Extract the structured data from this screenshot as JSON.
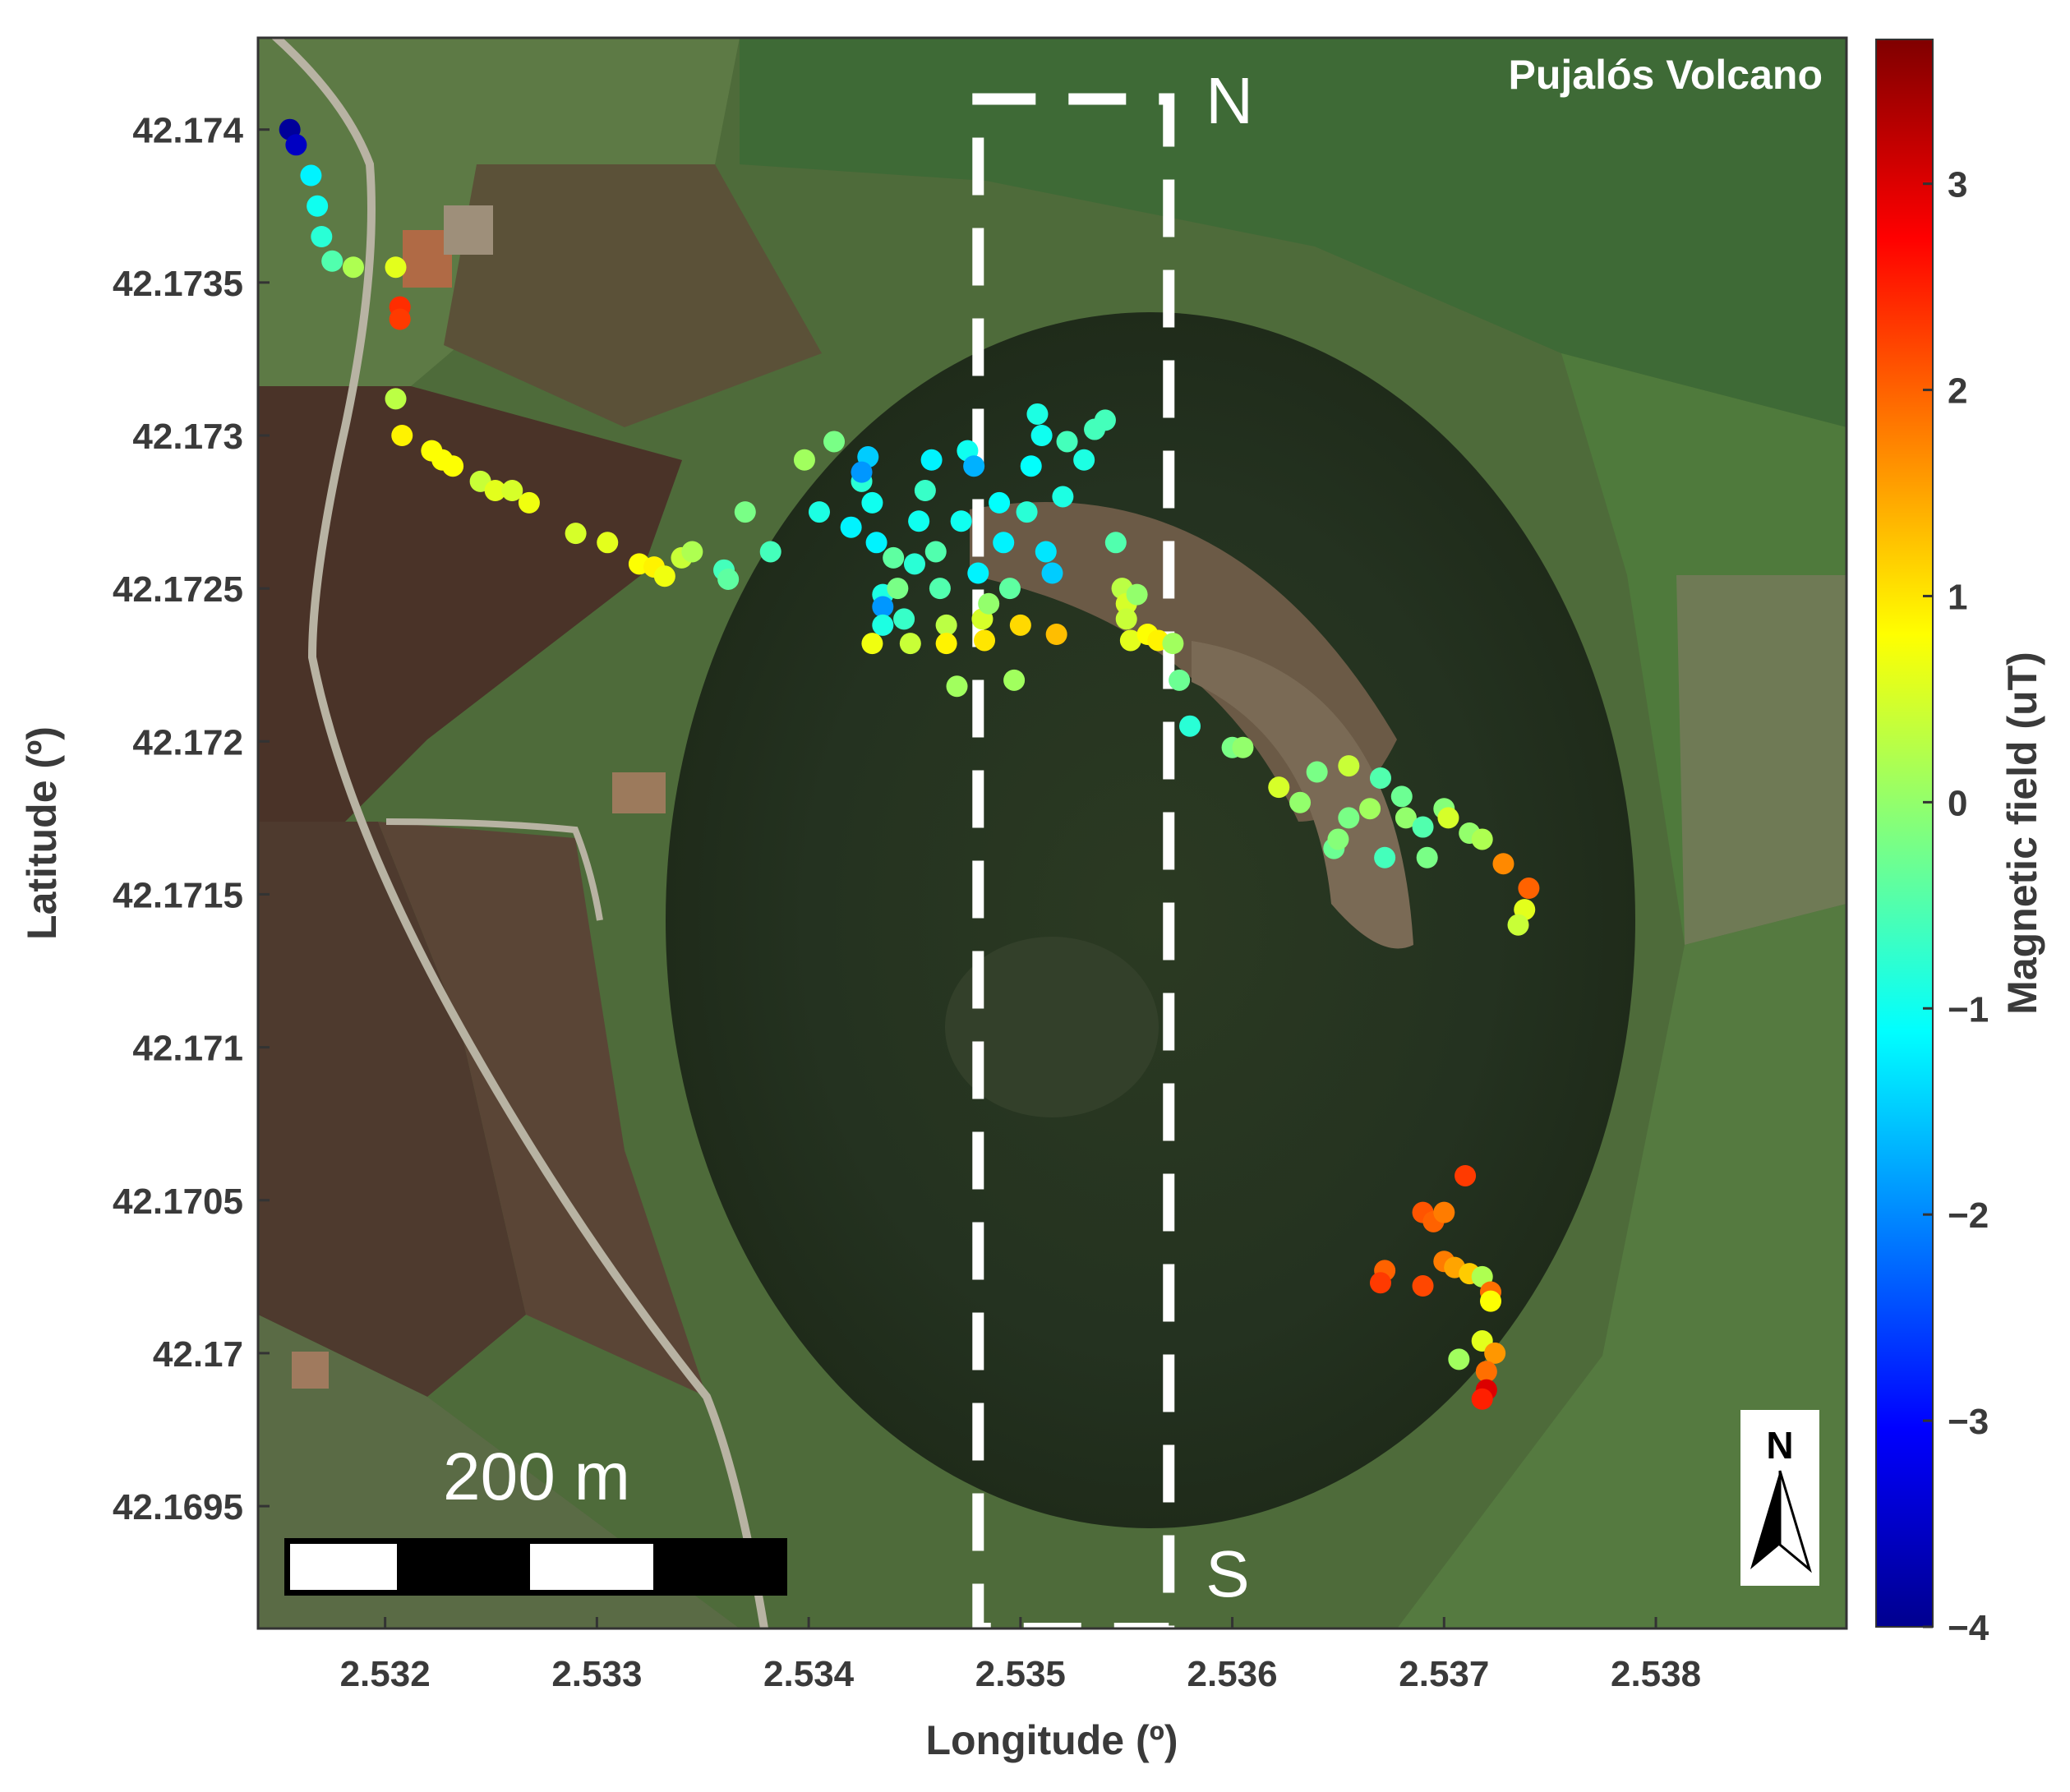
{
  "map": {
    "title": "Pujalós Volcano",
    "profile_start_label": "N",
    "profile_end_label": "S",
    "scale_bar_label": "200 m",
    "north_arrow_label": "N",
    "xlabel": "Longitude (º)",
    "ylabel": "Latitude (º)",
    "xlim": [
      2.5314,
      2.5389
    ],
    "ylim": [
      42.1691,
      42.1743
    ],
    "x_ticks": [
      "2.532",
      "2.533",
      "2.534",
      "2.535",
      "2.536",
      "2.537",
      "2.538"
    ],
    "y_ticks": [
      "42.174",
      "42.1735",
      "42.173",
      "42.1725",
      "42.172",
      "42.1715",
      "42.171",
      "42.1705",
      "42.17",
      "42.1695"
    ],
    "profile_box": {
      "lon": [
        2.5348,
        2.5357
      ],
      "lat": [
        42.1691,
        42.1741
      ]
    },
    "colors": {
      "profile_box": "#ffffff",
      "background": "#ffffff",
      "axis_text": "#3a3a3a"
    }
  },
  "colorbar": {
    "label": "Magnetic field (uT)",
    "range": [
      -4,
      3.7
    ],
    "ticks": [
      "3",
      "2",
      "1",
      "0",
      "−1",
      "−2",
      "−3",
      "−4"
    ],
    "colormap": "jet"
  },
  "chart_data": {
    "type": "scatter",
    "xlabel": "Longitude (º)",
    "ylabel": "Latitude (º)",
    "points": [
      [
        2.53155,
        42.174,
        -3.8
      ],
      [
        2.53158,
        42.17395,
        -3.5
      ],
      [
        2.53165,
        42.17385,
        -1.2
      ],
      [
        2.53168,
        42.17375,
        -1.0
      ],
      [
        2.5317,
        42.17365,
        -0.8
      ],
      [
        2.53175,
        42.17357,
        -0.5
      ],
      [
        2.53185,
        42.17355,
        0.2
      ],
      [
        2.53205,
        42.17355,
        0.6
      ],
      [
        2.53207,
        42.17342,
        2.4
      ],
      [
        2.53207,
        42.17338,
        2.3
      ],
      [
        2.53205,
        42.17312,
        0.3
      ],
      [
        2.53208,
        42.173,
        0.9
      ],
      [
        2.53222,
        42.17295,
        0.8
      ],
      [
        2.53227,
        42.17292,
        0.8
      ],
      [
        2.53232,
        42.1729,
        0.8
      ],
      [
        2.53245,
        42.17285,
        0.4
      ],
      [
        2.53252,
        42.17282,
        0.6
      ],
      [
        2.5326,
        42.17282,
        0.5
      ],
      [
        2.53268,
        42.17278,
        0.7
      ],
      [
        2.5329,
        42.17268,
        0.5
      ],
      [
        2.53305,
        42.17265,
        0.6
      ],
      [
        2.5332,
        42.17258,
        0.8
      ],
      [
        2.53327,
        42.17257,
        0.9
      ],
      [
        2.53332,
        42.17254,
        0.7
      ],
      [
        2.5334,
        42.1726,
        0.4
      ],
      [
        2.53345,
        42.17262,
        0.2
      ],
      [
        2.5336,
        42.17256,
        -0.6
      ],
      [
        2.53362,
        42.17253,
        -0.4
      ],
      [
        2.5337,
        42.17275,
        -0.2
      ],
      [
        2.53382,
        42.17262,
        -0.6
      ],
      [
        2.53398,
        42.17292,
        0.1
      ],
      [
        2.53405,
        42.17275,
        -0.9
      ],
      [
        2.53412,
        42.17298,
        -0.2
      ],
      [
        2.5342,
        42.1727,
        -1.2
      ],
      [
        2.53425,
        42.17285,
        -0.8
      ],
      [
        2.53428,
        42.17293,
        -1.5
      ],
      [
        2.53425,
        42.17288,
        -1.9
      ],
      [
        2.5343,
        42.17278,
        -1.0
      ],
      [
        2.53432,
        42.17265,
        -1.2
      ],
      [
        2.53435,
        42.17248,
        -0.9
      ],
      [
        2.53435,
        42.17244,
        -1.9
      ],
      [
        2.53435,
        42.17238,
        -0.9
      ],
      [
        2.5343,
        42.17232,
        0.7
      ],
      [
        2.5344,
        42.1726,
        -0.4
      ],
      [
        2.53442,
        42.1725,
        -0.2
      ],
      [
        2.53445,
        42.1724,
        -0.7
      ],
      [
        2.53448,
        42.17232,
        0.4
      ],
      [
        2.5345,
        42.17258,
        -0.8
      ],
      [
        2.53452,
        42.17272,
        -1.0
      ],
      [
        2.53455,
        42.17282,
        -0.7
      ],
      [
        2.53458,
        42.17292,
        -1.2
      ],
      [
        2.5346,
        42.17262,
        -0.5
      ],
      [
        2.53462,
        42.1725,
        -0.5
      ],
      [
        2.53465,
        42.17238,
        0.3
      ],
      [
        2.53465,
        42.17232,
        0.9
      ],
      [
        2.5347,
        42.17218,
        0.1
      ],
      [
        2.53472,
        42.17272,
        -1.0
      ],
      [
        2.53475,
        42.17295,
        -1.0
      ],
      [
        2.53478,
        42.1729,
        -1.7
      ],
      [
        2.5348,
        42.17255,
        -1.2
      ],
      [
        2.53482,
        42.1724,
        0.5
      ],
      [
        2.53483,
        42.17233,
        1.0
      ],
      [
        2.53485,
        42.17245,
        0.0
      ],
      [
        2.5349,
        42.17278,
        -1.1
      ],
      [
        2.53492,
        42.17265,
        -1.2
      ],
      [
        2.53495,
        42.1725,
        -0.4
      ],
      [
        2.53497,
        42.1722,
        0.1
      ],
      [
        2.535,
        42.17238,
        1.1
      ],
      [
        2.53503,
        42.17275,
        -0.8
      ],
      [
        2.53505,
        42.1729,
        -1.1
      ],
      [
        2.53508,
        42.17307,
        -0.9
      ],
      [
        2.5351,
        42.173,
        -1.0
      ],
      [
        2.53512,
        42.17262,
        -1.3
      ],
      [
        2.53515,
        42.17255,
        -1.5
      ],
      [
        2.53517,
        42.17235,
        1.3
      ],
      [
        2.5352,
        42.1728,
        -0.9
      ],
      [
        2.53522,
        42.17298,
        -0.6
      ],
      [
        2.5353,
        42.17292,
        -0.9
      ],
      [
        2.53535,
        42.17302,
        -0.6
      ],
      [
        2.5354,
        42.17305,
        -0.6
      ],
      [
        2.53545,
        42.17265,
        -0.5
      ],
      [
        2.53548,
        42.1725,
        0.3
      ],
      [
        2.5355,
        42.17245,
        0.5
      ],
      [
        2.5355,
        42.1724,
        0.4
      ],
      [
        2.53552,
        42.17233,
        0.6
      ],
      [
        2.53555,
        42.17248,
        0.0
      ],
      [
        2.5356,
        42.17235,
        0.8
      ],
      [
        2.53565,
        42.17233,
        0.9
      ],
      [
        2.53572,
        42.17232,
        0.1
      ],
      [
        2.53575,
        42.1722,
        -0.3
      ],
      [
        2.5358,
        42.17205,
        -0.8
      ],
      [
        2.536,
        42.17198,
        -0.2
      ],
      [
        2.53605,
        42.17198,
        0.0
      ],
      [
        2.53622,
        42.17185,
        0.5
      ],
      [
        2.53632,
        42.1718,
        0.0
      ],
      [
        2.5364,
        42.1719,
        -0.2
      ],
      [
        2.53655,
        42.17192,
        0.4
      ],
      [
        2.53648,
        42.17165,
        -0.3
      ],
      [
        2.5365,
        42.17168,
        -0.1
      ],
      [
        2.53655,
        42.17175,
        -0.2
      ],
      [
        2.53665,
        42.17178,
        0.1
      ],
      [
        2.5367,
        42.17188,
        -0.5
      ],
      [
        2.53672,
        42.17162,
        -0.6
      ],
      [
        2.5368,
        42.17182,
        -0.3
      ],
      [
        2.53682,
        42.17175,
        0.0
      ],
      [
        2.5369,
        42.17172,
        -0.5
      ],
      [
        2.53692,
        42.17162,
        -0.2
      ],
      [
        2.537,
        42.17178,
        -0.1
      ],
      [
        2.53702,
        42.17175,
        0.5
      ],
      [
        2.53712,
        42.1717,
        0.0
      ],
      [
        2.53718,
        42.17168,
        0.2
      ],
      [
        2.53728,
        42.1716,
        1.7
      ],
      [
        2.5374,
        42.17152,
        2.0
      ],
      [
        2.53738,
        42.17145,
        0.6
      ],
      [
        2.53735,
        42.1714,
        0.4
      ],
      [
        2.5371,
        42.17058,
        2.3
      ],
      [
        2.5369,
        42.17046,
        2.1
      ],
      [
        2.53695,
        42.17043,
        2.0
      ],
      [
        2.537,
        42.17046,
        1.8
      ],
      [
        2.53672,
        42.17027,
        2.0
      ],
      [
        2.5367,
        42.17023,
        2.3
      ],
      [
        2.5369,
        42.17022,
        2.2
      ],
      [
        2.537,
        42.1703,
        1.8
      ],
      [
        2.53705,
        42.17028,
        1.5
      ],
      [
        2.53712,
        42.17026,
        1.2
      ],
      [
        2.53718,
        42.17025,
        0.2
      ],
      [
        2.53722,
        42.1702,
        1.9
      ],
      [
        2.53722,
        42.17017,
        0.8
      ],
      [
        2.53718,
        42.17004,
        0.6
      ],
      [
        2.53724,
        42.17,
        1.6
      ],
      [
        2.5372,
        42.16994,
        1.9
      ],
      [
        2.53707,
        42.16998,
        0.1
      ],
      [
        2.5372,
        42.16988,
        3.0
      ],
      [
        2.53718,
        42.16985,
        2.5
      ]
    ]
  }
}
